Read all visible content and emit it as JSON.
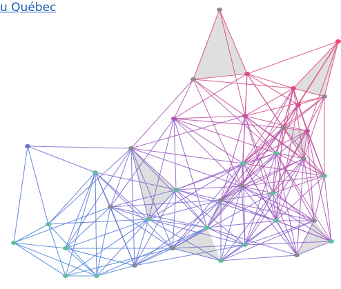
{
  "link": {
    "text": "u Québec"
  }
}
